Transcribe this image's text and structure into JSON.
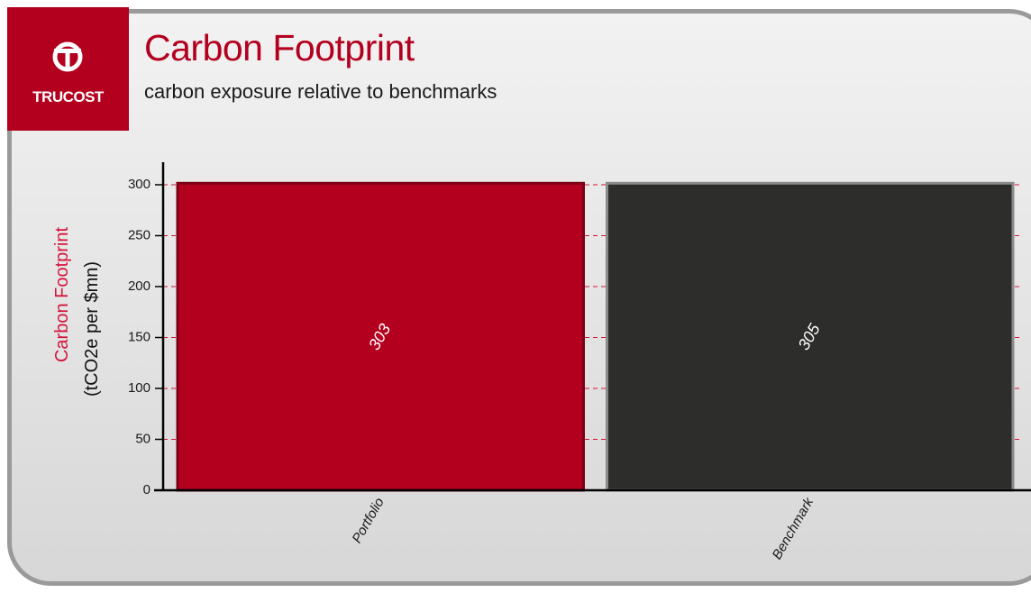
{
  "header": {
    "logo_text": "TRUCOST",
    "title": "Carbon Footprint",
    "subtitle": "carbon exposure relative to benchmarks"
  },
  "colors": {
    "brand_red": "#b3001f",
    "benchmark_bar": "#2d2d2b",
    "benchmark_border": "#8a8a8a",
    "grid": "#d3153a"
  },
  "chart_data": {
    "type": "bar",
    "categories": [
      "Portfolio",
      "Benchmark"
    ],
    "values": [
      303,
      305
    ],
    "data_labels": [
      "303",
      "305"
    ],
    "ylabel_line1": "Carbon Footprint",
    "ylabel_line2": "(tCO2e per $mn)",
    "xlabel": "",
    "ylim": [
      0,
      300
    ],
    "yticks": [
      0,
      50,
      100,
      150,
      200,
      250,
      300
    ],
    "grid": true,
    "grid_style": "dashed",
    "legend": "none"
  }
}
